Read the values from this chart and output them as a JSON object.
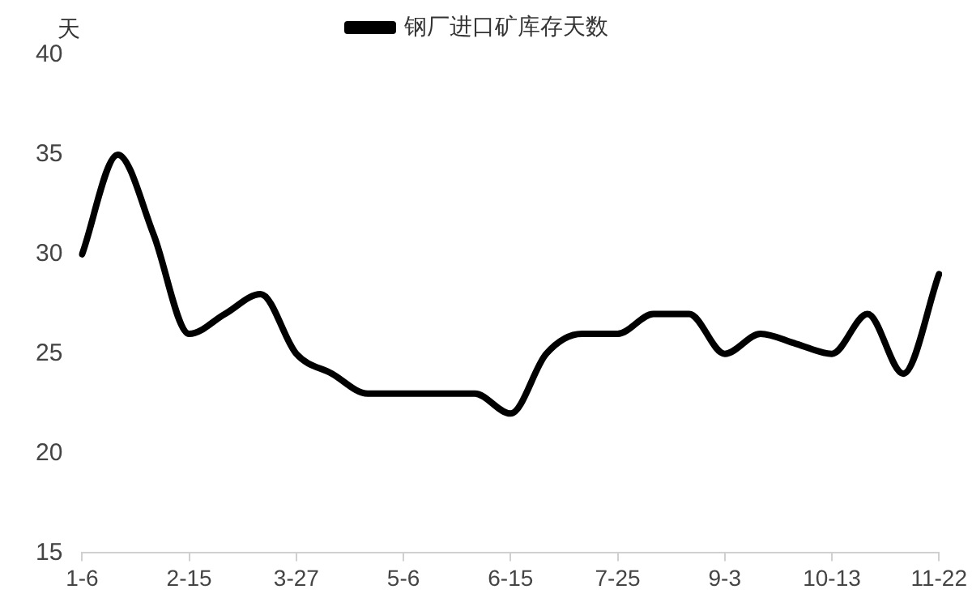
{
  "chart_data": {
    "type": "line",
    "ylabel": "天",
    "categories": [
      "1-6",
      null,
      null,
      "2-15",
      null,
      null,
      "3-27",
      null,
      null,
      "5-6",
      null,
      null,
      "6-15",
      null,
      null,
      "7-25",
      null,
      null,
      "9-3",
      null,
      null,
      "10-13",
      null,
      null,
      "11-22"
    ],
    "series": [
      {
        "name": "钢厂进口矿库存天数",
        "color": "#000000",
        "values": [
          30,
          35,
          31,
          26,
          27,
          28,
          25,
          24,
          23,
          23,
          23,
          23,
          22,
          25,
          26,
          26,
          27,
          27,
          25,
          26,
          25.5,
          25,
          27,
          24,
          29
        ]
      }
    ],
    "ylim": [
      15,
      40
    ],
    "yticks": [
      15,
      20,
      25,
      30,
      35,
      40
    ],
    "grid": false,
    "legend": "top",
    "marker": "none",
    "line_style": "solid"
  }
}
